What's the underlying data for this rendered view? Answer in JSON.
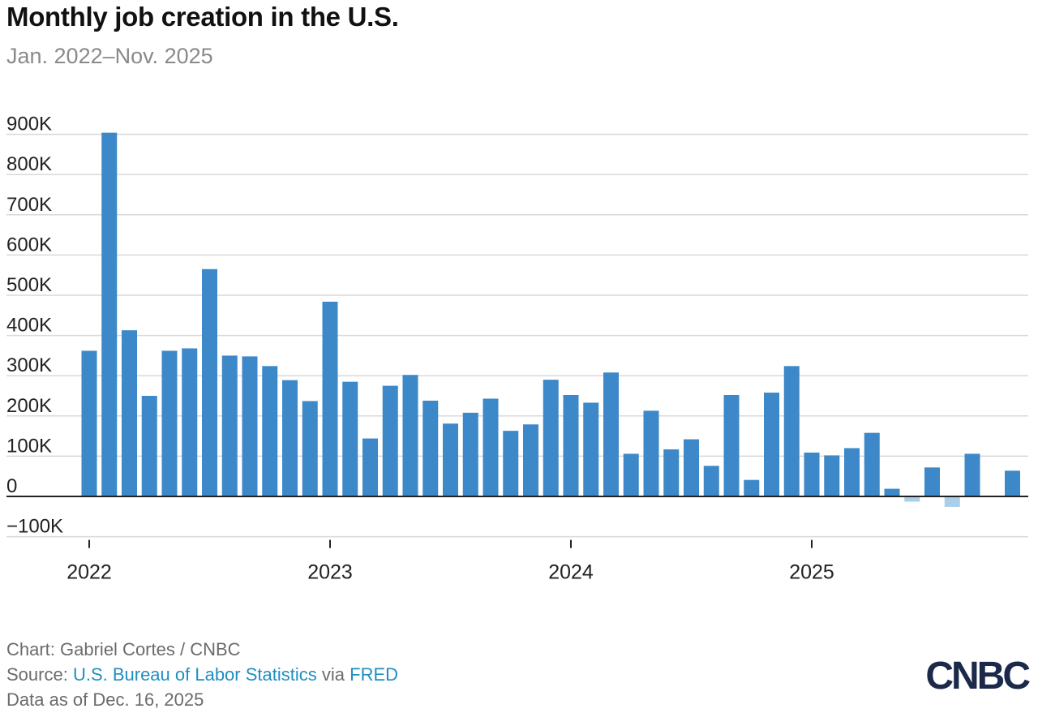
{
  "header": {
    "title": "Monthly job creation in the U.S.",
    "subtitle": "Jan. 2022–Nov. 2025"
  },
  "footer": {
    "credit": "Chart: Gabriel Cortes / CNBC",
    "source_prefix": "Source: ",
    "source_link": "U.S. Bureau of Labor Statistics",
    "source_via": " via ",
    "source_link2": "FRED",
    "data_as_of": "Data as of Dec. 16, 2025",
    "logo": "CNBC"
  },
  "colors": {
    "positive_bar": "#3d88c8",
    "negative_bar": "#a9d0ea",
    "gridline": "#d9d9d9",
    "zero_line": "#222222",
    "link": "#1f8fc0"
  },
  "chart_data": {
    "type": "bar",
    "title": "Monthly job creation in the U.S.",
    "subtitle": "Jan. 2022–Nov. 2025",
    "xlabel": "",
    "ylabel": "",
    "ylim": [
      -100000,
      900000
    ],
    "yticks": [
      -100000,
      0,
      100000,
      200000,
      300000,
      400000,
      500000,
      600000,
      700000,
      800000,
      900000
    ],
    "ytick_labels": [
      "−100K",
      "0",
      "100K",
      "200K",
      "300K",
      "400K",
      "500K",
      "600K",
      "700K",
      "800K",
      "900K"
    ],
    "xtick_labels": [
      {
        "index": 0,
        "label": "2022"
      },
      {
        "index": 12,
        "label": "2023"
      },
      {
        "index": 24,
        "label": "2024"
      },
      {
        "index": 36,
        "label": "2025"
      }
    ],
    "grid": true,
    "categories": [
      "Jan 2022",
      "Feb 2022",
      "Mar 2022",
      "Apr 2022",
      "May 2022",
      "Jun 2022",
      "Jul 2022",
      "Aug 2022",
      "Sep 2022",
      "Oct 2022",
      "Nov 2022",
      "Dec 2022",
      "Jan 2023",
      "Feb 2023",
      "Mar 2023",
      "Apr 2023",
      "May 2023",
      "Jun 2023",
      "Jul 2023",
      "Aug 2023",
      "Sep 2023",
      "Oct 2023",
      "Nov 2023",
      "Dec 2023",
      "Jan 2024",
      "Feb 2024",
      "Mar 2024",
      "Apr 2024",
      "May 2024",
      "Jun 2024",
      "Jul 2024",
      "Aug 2024",
      "Sep 2024",
      "Oct 2024",
      "Nov 2024",
      "Dec 2024",
      "Jan 2025",
      "Feb 2025",
      "Mar 2025",
      "Apr 2025",
      "May 2025",
      "Jun 2025",
      "Jul 2025",
      "Aug 2025",
      "Sep 2025",
      "Oct 2025",
      "Nov 2025"
    ],
    "values": [
      362000,
      904000,
      413000,
      250000,
      362000,
      368000,
      565000,
      350000,
      348000,
      324000,
      289000,
      237000,
      484000,
      285000,
      144000,
      275000,
      302000,
      238000,
      181000,
      208000,
      243000,
      163000,
      179000,
      290000,
      252000,
      233000,
      308000,
      106000,
      213000,
      117000,
      142000,
      76000,
      252000,
      41000,
      258000,
      324000,
      109000,
      102000,
      120000,
      158000,
      19000,
      -13000,
      72000,
      -26000,
      106000,
      null,
      64000
    ]
  }
}
